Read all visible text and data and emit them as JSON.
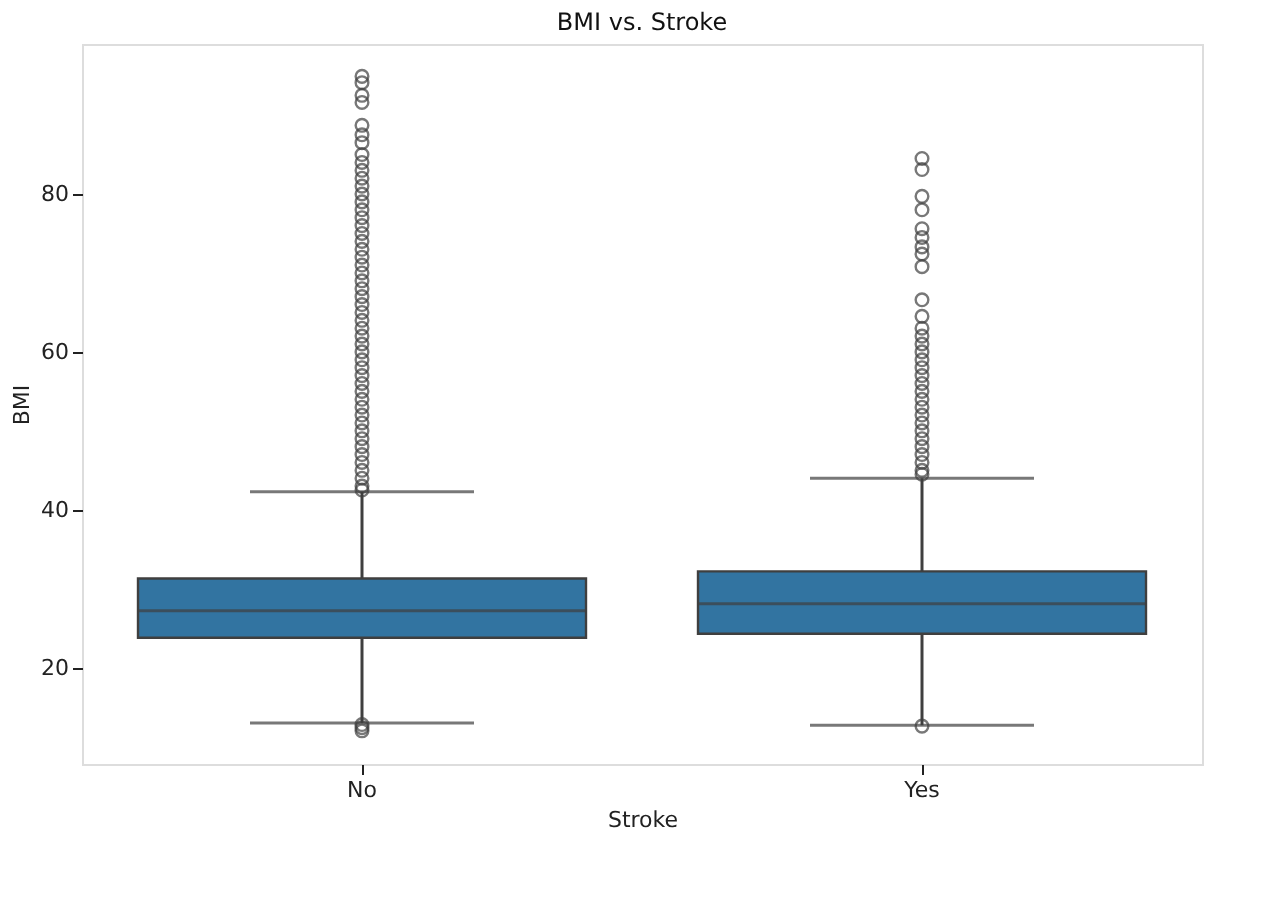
{
  "chart_data": {
    "type": "box",
    "title": "BMI vs. Stroke",
    "xlabel": "Stroke",
    "ylabel": "BMI",
    "categories": [
      "No",
      "Yes"
    ],
    "color": "#3274a1",
    "boxes": [
      {
        "low": 13.0,
        "q1": 23.8,
        "median": 27.2,
        "q3": 31.3,
        "high": 42.3,
        "outliers": [
          12.0,
          12.4,
          12.8,
          42.5,
          43,
          44,
          45,
          46,
          47,
          48,
          49,
          50,
          51,
          52,
          53,
          54,
          55,
          56,
          57,
          58,
          59,
          60,
          61,
          62,
          63,
          64,
          65,
          66,
          67,
          68,
          69,
          70,
          71,
          72,
          73,
          74,
          75,
          76,
          77,
          78,
          79,
          80,
          81,
          82,
          83,
          84,
          85,
          86.5,
          87.5,
          88.7,
          91.6,
          92.5,
          94.1,
          94.9
        ]
      },
      {
        "low": 12.7,
        "q1": 24.3,
        "median": 28.1,
        "q3": 32.2,
        "high": 44.0,
        "outliers": [
          12.6,
          44.5,
          45,
          46,
          47,
          48,
          49,
          50,
          51,
          52,
          53,
          54,
          55,
          56,
          57,
          58,
          59,
          60,
          61,
          62,
          63,
          64.5,
          66.6,
          70.8,
          72.4,
          73.3,
          74.5,
          75.6,
          78.0,
          79.7,
          83.1,
          84.5
        ]
      }
    ],
    "ylim": [
      7.8,
      99
    ],
    "yticks": [
      20,
      40,
      60,
      80
    ],
    "grid": false
  }
}
